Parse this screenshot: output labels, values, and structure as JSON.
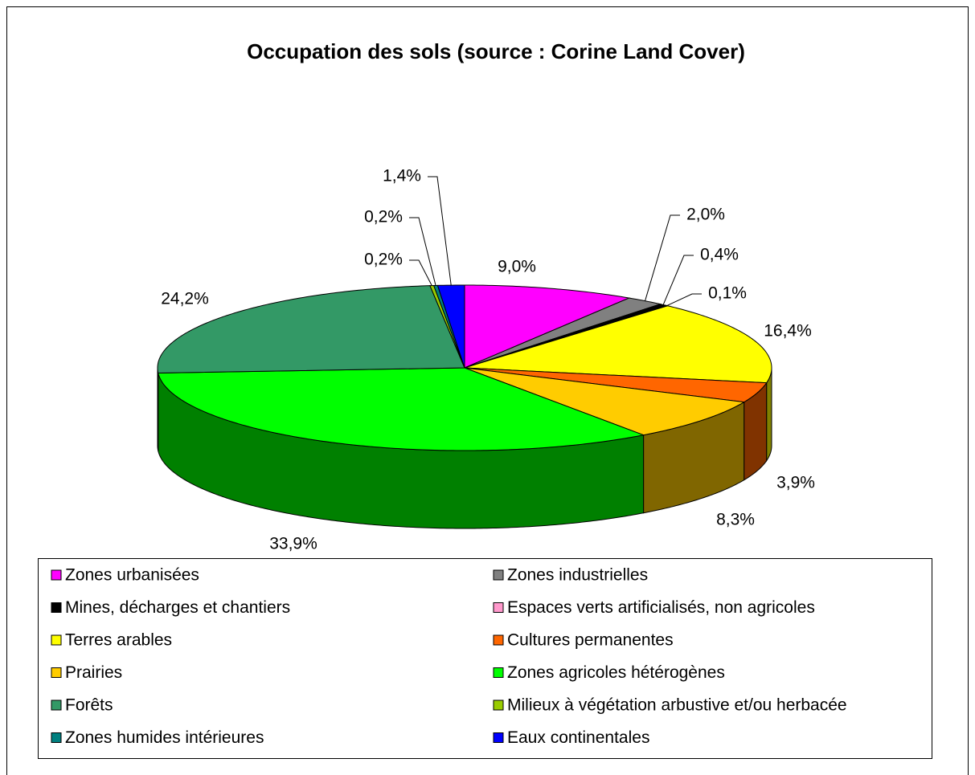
{
  "chart_data": {
    "type": "pie",
    "title": "Occupation des sols (source : Corine Land Cover)",
    "categories": [
      "Zones urbanisées",
      "Zones industrielles",
      "Mines, décharges et chantiers",
      "Espaces verts artificialisés, non agricoles",
      "Terres arables",
      "Cultures permanentes",
      "Prairies",
      "Zones agricoles hétérogènes",
      "Forêts",
      "Milieux à végétation arbustive et/ou herbacée",
      "Zones humides intérieures",
      "Eaux continentales"
    ],
    "values": [
      9.0,
      2.0,
      0.4,
      0.1,
      16.4,
      3.9,
      8.3,
      33.9,
      24.2,
      0.2,
      0.2,
      1.4
    ],
    "value_labels": [
      "9,0%",
      "2,0%",
      "0,4%",
      "0,1%",
      "16,4%",
      "3,9%",
      "8,3%",
      "33,9%",
      "24,2%",
      "0,2%",
      "0,2%",
      "1,4%"
    ],
    "colors": [
      "#ff00ff",
      "#808080",
      "#000000",
      "#ff99cc",
      "#ffff00",
      "#ff6600",
      "#ffcc00",
      "#00ff00",
      "#339966",
      "#99cc00",
      "#008080",
      "#0000ff"
    ],
    "legend": "bottom"
  }
}
